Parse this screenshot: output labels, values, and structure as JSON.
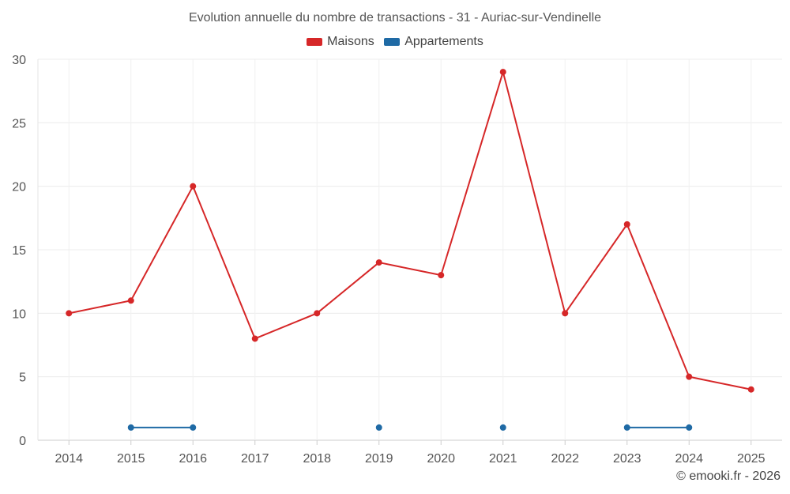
{
  "chart_data": {
    "type": "line",
    "title": "Evolution annuelle du nombre de transactions - 31 - Auriac-sur-Vendinelle",
    "categories": [
      "2014",
      "2015",
      "2016",
      "2017",
      "2018",
      "2019",
      "2020",
      "2021",
      "2022",
      "2023",
      "2024",
      "2025"
    ],
    "series": [
      {
        "name": "Maisons",
        "color": "#d62728",
        "values": [
          10,
          11,
          20,
          8,
          10,
          14,
          13,
          29,
          10,
          17,
          5,
          4
        ]
      },
      {
        "name": "Appartements",
        "color": "#1f6aa5",
        "values": [
          null,
          1,
          1,
          null,
          null,
          1,
          null,
          1,
          null,
          1,
          1,
          null
        ]
      }
    ],
    "ylim": [
      0,
      30
    ],
    "yticks": [
      0,
      5,
      10,
      15,
      20,
      25,
      30
    ],
    "grid": true,
    "legend": "top-center",
    "xlabel": "",
    "ylabel": ""
  },
  "credit": "© emooki.fr - 2026"
}
